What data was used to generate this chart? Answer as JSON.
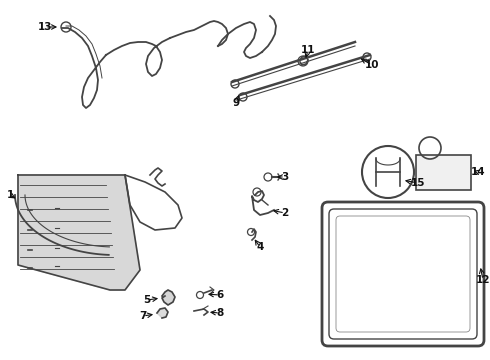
{
  "bg_color": "#ffffff",
  "line_color": "#444444",
  "text_color": "#111111",
  "label_fontsize": 7.5,
  "fig_w": 4.9,
  "fig_h": 3.6,
  "dpi": 100
}
